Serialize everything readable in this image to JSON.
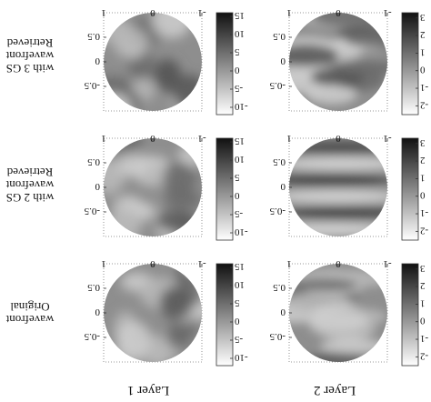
{
  "figure": {
    "row_labels": [
      [
        "Retrieved",
        "wavefront",
        "with 3 GS"
      ],
      [
        "Retrieved",
        "wavefront",
        "with 2 GS"
      ],
      [
        "Original",
        "wavefront"
      ]
    ],
    "column_labels": [
      "Layer 1",
      "Layer 2"
    ]
  },
  "chart_data": [
    {
      "type": "heatmap",
      "row": 0,
      "col": 0,
      "title": "Retrieved wavefront with 3 GS",
      "xlabel": "",
      "ylabel": "",
      "x_ticks": [
        "-1",
        "0",
        "1"
      ],
      "y_ticks": [
        "-0.5",
        "0",
        "0.5"
      ],
      "xlim": [
        -1,
        1
      ],
      "ylim": [
        -1,
        1
      ],
      "colorbar": {
        "ticks": [
          "15",
          "10",
          "5",
          "0",
          "-5",
          "-10"
        ],
        "range": [
          -12,
          16
        ],
        "colormap": "gray"
      }
    },
    {
      "type": "heatmap",
      "row": 0,
      "col": 1,
      "title": "Retrieved wavefront with 3 GS",
      "xlabel": "",
      "ylabel": "",
      "x_ticks": [
        "-1",
        "0",
        "1"
      ],
      "y_ticks": [
        "-0.5",
        "0",
        "0.5"
      ],
      "xlim": [
        -1,
        1
      ],
      "ylim": [
        -1,
        1
      ],
      "colorbar": {
        "ticks": [
          "3",
          "2",
          "1",
          "0",
          "-1",
          "-2"
        ],
        "range": [
          -2.5,
          3.3
        ],
        "colormap": "gray"
      }
    },
    {
      "type": "heatmap",
      "row": 1,
      "col": 0,
      "title": "Retrieved wavefront with 2 GS",
      "xlabel": "",
      "ylabel": "",
      "x_ticks": [
        "-1",
        "0",
        "1"
      ],
      "y_ticks": [
        "-0.5",
        "0",
        "0.5"
      ],
      "xlim": [
        -1,
        1
      ],
      "ylim": [
        -1,
        1
      ],
      "colorbar": {
        "ticks": [
          "15",
          "10",
          "5",
          "0",
          "-5",
          "-10"
        ],
        "range": [
          -12,
          16
        ],
        "colormap": "gray"
      }
    },
    {
      "type": "heatmap",
      "row": 1,
      "col": 1,
      "title": "Retrieved wavefront with 2 GS",
      "xlabel": "",
      "ylabel": "",
      "x_ticks": [
        "-1",
        "0",
        "1"
      ],
      "y_ticks": [
        "-0.5",
        "0",
        "0.5"
      ],
      "xlim": [
        -1,
        1
      ],
      "ylim": [
        -1,
        1
      ],
      "colorbar": {
        "ticks": [
          "3",
          "2",
          "1",
          "0",
          "-1",
          "-2"
        ],
        "range": [
          -2.5,
          3.3
        ],
        "colormap": "gray"
      }
    },
    {
      "type": "heatmap",
      "row": 2,
      "col": 0,
      "title": "Original wavefront",
      "xlabel": "Layer 1",
      "ylabel": "",
      "x_ticks": [
        "-1",
        "0",
        "1"
      ],
      "y_ticks": [
        "-0.5",
        "0",
        "0.5"
      ],
      "xlim": [
        -1,
        1
      ],
      "ylim": [
        -1,
        1
      ],
      "colorbar": {
        "ticks": [
          "15",
          "10",
          "5",
          "0",
          "-5",
          "-10"
        ],
        "range": [
          -12,
          16
        ],
        "colormap": "gray"
      }
    },
    {
      "type": "heatmap",
      "row": 2,
      "col": 1,
      "title": "Original wavefront",
      "xlabel": "Layer 2",
      "ylabel": "",
      "x_ticks": [
        "-1",
        "0",
        "1"
      ],
      "y_ticks": [
        "-0.5",
        "0",
        "0.5"
      ],
      "xlim": [
        -1,
        1
      ],
      "ylim": [
        -1,
        1
      ],
      "colorbar": {
        "ticks": [
          "3",
          "2",
          "1",
          "0",
          "-1",
          "-2"
        ],
        "range": [
          -2.5,
          3.3
        ],
        "colormap": "gray"
      }
    }
  ]
}
